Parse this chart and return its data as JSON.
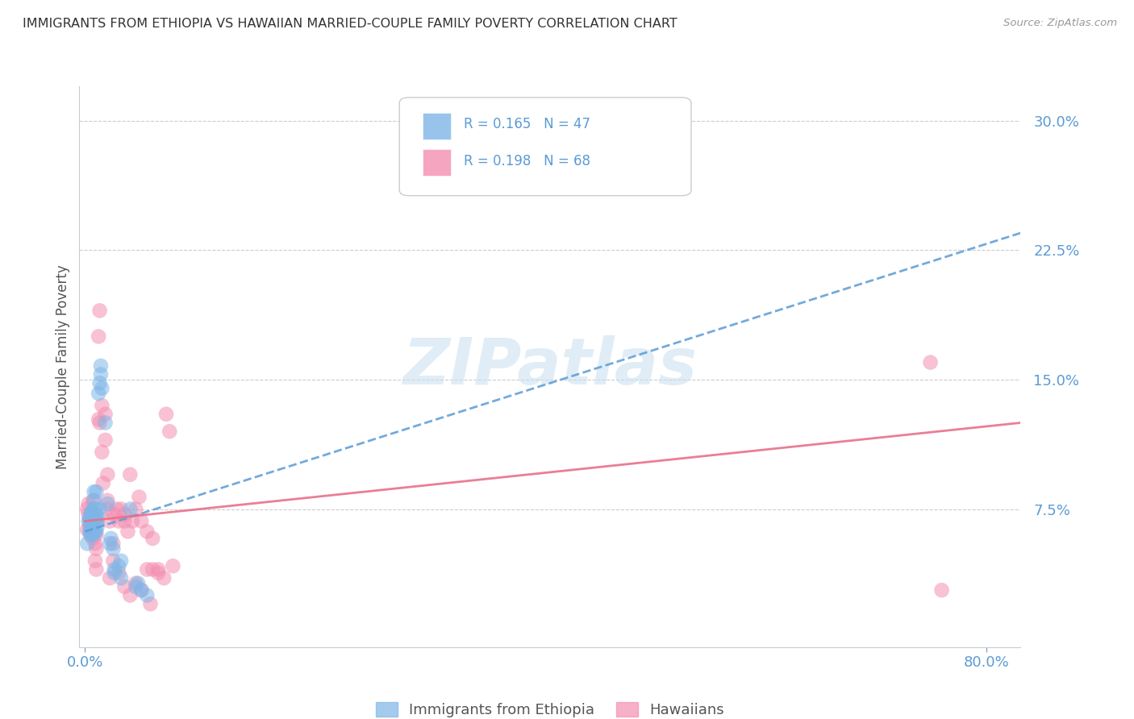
{
  "title": "IMMIGRANTS FROM ETHIOPIA VS HAWAIIAN MARRIED-COUPLE FAMILY POVERTY CORRELATION CHART",
  "source": "Source: ZipAtlas.com",
  "ylabel": "Married-Couple Family Poverty",
  "ytick_labels": [
    "7.5%",
    "15.0%",
    "22.5%",
    "30.0%"
  ],
  "ytick_values": [
    0.075,
    0.15,
    0.225,
    0.3
  ],
  "ylim": [
    -0.005,
    0.32
  ],
  "xlim": [
    -0.005,
    0.83
  ],
  "legend1_r": "0.165",
  "legend1_n": "47",
  "legend2_r": "0.198",
  "legend2_n": "68",
  "legend_label1": "Immigrants from Ethiopia",
  "legend_label2": "Hawaiians",
  "blue_color": "#7EB6E8",
  "pink_color": "#F48FB1",
  "blue_line_color": "#5B9BD5",
  "pink_line_color": "#E8708A",
  "watermark_color": "#C8DFF0",
  "title_color": "#333333",
  "axis_label_color": "#555555",
  "tick_label_color": "#5B9BD5",
  "grid_color": "#CCCCCC",
  "blue_scatter": [
    [
      0.002,
      0.055
    ],
    [
      0.003,
      0.068
    ],
    [
      0.004,
      0.062
    ],
    [
      0.004,
      0.07
    ],
    [
      0.005,
      0.063
    ],
    [
      0.005,
      0.067
    ],
    [
      0.005,
      0.072
    ],
    [
      0.005,
      0.06
    ],
    [
      0.006,
      0.065
    ],
    [
      0.006,
      0.071
    ],
    [
      0.006,
      0.073
    ],
    [
      0.007,
      0.068
    ],
    [
      0.007,
      0.075
    ],
    [
      0.007,
      0.06
    ],
    [
      0.008,
      0.072
    ],
    [
      0.008,
      0.08
    ],
    [
      0.008,
      0.085
    ],
    [
      0.009,
      0.062
    ],
    [
      0.009,
      0.07
    ],
    [
      0.009,
      0.075
    ],
    [
      0.01,
      0.068
    ],
    [
      0.01,
      0.072
    ],
    [
      0.01,
      0.085
    ],
    [
      0.01,
      0.062
    ],
    [
      0.011,
      0.065
    ],
    [
      0.011,
      0.07
    ],
    [
      0.012,
      0.142
    ],
    [
      0.013,
      0.075
    ],
    [
      0.013,
      0.148
    ],
    [
      0.014,
      0.153
    ],
    [
      0.014,
      0.158
    ],
    [
      0.015,
      0.145
    ],
    [
      0.018,
      0.125
    ],
    [
      0.02,
      0.078
    ],
    [
      0.022,
      0.055
    ],
    [
      0.023,
      0.058
    ],
    [
      0.025,
      0.052
    ],
    [
      0.026,
      0.04
    ],
    [
      0.026,
      0.038
    ],
    [
      0.03,
      0.042
    ],
    [
      0.032,
      0.035
    ],
    [
      0.032,
      0.045
    ],
    [
      0.04,
      0.075
    ],
    [
      0.045,
      0.03
    ],
    [
      0.047,
      0.032
    ],
    [
      0.05,
      0.028
    ],
    [
      0.055,
      0.025
    ]
  ],
  "pink_scatter": [
    [
      0.002,
      0.075
    ],
    [
      0.002,
      0.063
    ],
    [
      0.003,
      0.072
    ],
    [
      0.003,
      0.078
    ],
    [
      0.004,
      0.068
    ],
    [
      0.004,
      0.065
    ],
    [
      0.005,
      0.07
    ],
    [
      0.005,
      0.068
    ],
    [
      0.005,
      0.06
    ],
    [
      0.006,
      0.065
    ],
    [
      0.006,
      0.073
    ],
    [
      0.007,
      0.08
    ],
    [
      0.007,
      0.058
    ],
    [
      0.008,
      0.062
    ],
    [
      0.008,
      0.068
    ],
    [
      0.009,
      0.055
    ],
    [
      0.009,
      0.072
    ],
    [
      0.009,
      0.045
    ],
    [
      0.01,
      0.052
    ],
    [
      0.01,
      0.06
    ],
    [
      0.01,
      0.04
    ],
    [
      0.011,
      0.068
    ],
    [
      0.012,
      0.127
    ],
    [
      0.012,
      0.175
    ],
    [
      0.013,
      0.125
    ],
    [
      0.013,
      0.19
    ],
    [
      0.015,
      0.108
    ],
    [
      0.015,
      0.135
    ],
    [
      0.016,
      0.09
    ],
    [
      0.018,
      0.115
    ],
    [
      0.018,
      0.13
    ],
    [
      0.02,
      0.095
    ],
    [
      0.02,
      0.075
    ],
    [
      0.02,
      0.08
    ],
    [
      0.022,
      0.068
    ],
    [
      0.022,
      0.035
    ],
    [
      0.025,
      0.072
    ],
    [
      0.025,
      0.055
    ],
    [
      0.025,
      0.045
    ],
    [
      0.028,
      0.075
    ],
    [
      0.03,
      0.068
    ],
    [
      0.03,
      0.038
    ],
    [
      0.032,
      0.075
    ],
    [
      0.035,
      0.068
    ],
    [
      0.035,
      0.072
    ],
    [
      0.035,
      0.03
    ],
    [
      0.038,
      0.062
    ],
    [
      0.04,
      0.025
    ],
    [
      0.04,
      0.095
    ],
    [
      0.042,
      0.068
    ],
    [
      0.045,
      0.075
    ],
    [
      0.045,
      0.032
    ],
    [
      0.048,
      0.082
    ],
    [
      0.05,
      0.028
    ],
    [
      0.05,
      0.068
    ],
    [
      0.055,
      0.062
    ],
    [
      0.055,
      0.04
    ],
    [
      0.058,
      0.02
    ],
    [
      0.06,
      0.058
    ],
    [
      0.06,
      0.04
    ],
    [
      0.065,
      0.04
    ],
    [
      0.065,
      0.038
    ],
    [
      0.07,
      0.035
    ],
    [
      0.072,
      0.13
    ],
    [
      0.075,
      0.12
    ],
    [
      0.078,
      0.042
    ],
    [
      0.75,
      0.16
    ],
    [
      0.76,
      0.028
    ]
  ],
  "blue_line_x": [
    0.0,
    0.83
  ],
  "blue_line_y": [
    0.062,
    0.235
  ],
  "pink_line_x": [
    0.0,
    0.83
  ],
  "pink_line_y": [
    0.068,
    0.125
  ]
}
